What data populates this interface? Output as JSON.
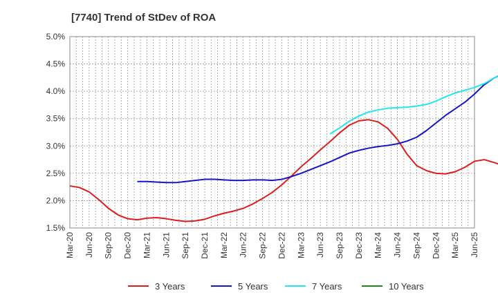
{
  "chart_data": {
    "type": "line",
    "title": "[7740]  Trend of StDev of ROA",
    "xlabel": "",
    "ylabel": "",
    "x_ticks": [
      "Mar-20",
      "Jun-20",
      "Sep-20",
      "Dec-20",
      "Mar-21",
      "Jun-21",
      "Sep-21",
      "Dec-21",
      "Mar-22",
      "Jun-22",
      "Sep-22",
      "Dec-22",
      "Mar-23",
      "Jun-23",
      "Sep-23",
      "Dec-23",
      "Mar-24",
      "Jun-24",
      "Sep-24",
      "Dec-24",
      "Mar-25",
      "Jun-25"
    ],
    "y_ticks": [
      "1.5%",
      "2.0%",
      "2.5%",
      "3.0%",
      "3.5%",
      "4.0%",
      "4.5%",
      "5.0%"
    ],
    "ylim": [
      1.5,
      5.0
    ],
    "grid": true,
    "legend_position": "bottom",
    "series": [
      {
        "name": "3 Years",
        "color": "#dd1c1c",
        "start_index": 0,
        "values": [
          2.27,
          2.24,
          2.16,
          2.02,
          1.86,
          1.74,
          1.67,
          1.65,
          1.68,
          1.69,
          1.67,
          1.64,
          1.62,
          1.63,
          1.66,
          1.72,
          1.77,
          1.81,
          1.86,
          1.94,
          2.04,
          2.15,
          2.29,
          2.45,
          2.62,
          2.77,
          2.93,
          3.08,
          3.24,
          3.38,
          3.46,
          3.48,
          3.44,
          3.32,
          3.12,
          2.85,
          2.64,
          2.55,
          2.5,
          2.49,
          2.53,
          2.61,
          2.72,
          2.75,
          2.7,
          2.64,
          2.58,
          2.54
        ]
      },
      {
        "name": "5 Years",
        "color": "#1515c8",
        "start_index": 7,
        "values": [
          2.35,
          2.35,
          2.34,
          2.33,
          2.33,
          2.35,
          2.37,
          2.39,
          2.39,
          2.38,
          2.37,
          2.37,
          2.38,
          2.38,
          2.37,
          2.39,
          2.44,
          2.5,
          2.57,
          2.64,
          2.71,
          2.79,
          2.87,
          2.92,
          2.96,
          2.99,
          3.01,
          3.04,
          3.09,
          3.16,
          3.28,
          3.42,
          3.56,
          3.68,
          3.8,
          3.95,
          4.12,
          4.24,
          4.32,
          4.4,
          4.47,
          4.56
        ]
      },
      {
        "name": "7 Years",
        "color": "#22e6ee",
        "start_index": 27,
        "values": [
          3.22,
          3.33,
          3.45,
          3.55,
          3.62,
          3.66,
          3.69,
          3.7,
          3.71,
          3.73,
          3.76,
          3.82,
          3.9,
          3.97,
          4.02,
          4.07,
          4.14,
          4.24,
          4.31,
          4.36,
          4.41,
          4.48
        ]
      },
      {
        "name": "10 Years",
        "color": "#1a8a1a",
        "start_index": 0,
        "values": []
      }
    ]
  }
}
